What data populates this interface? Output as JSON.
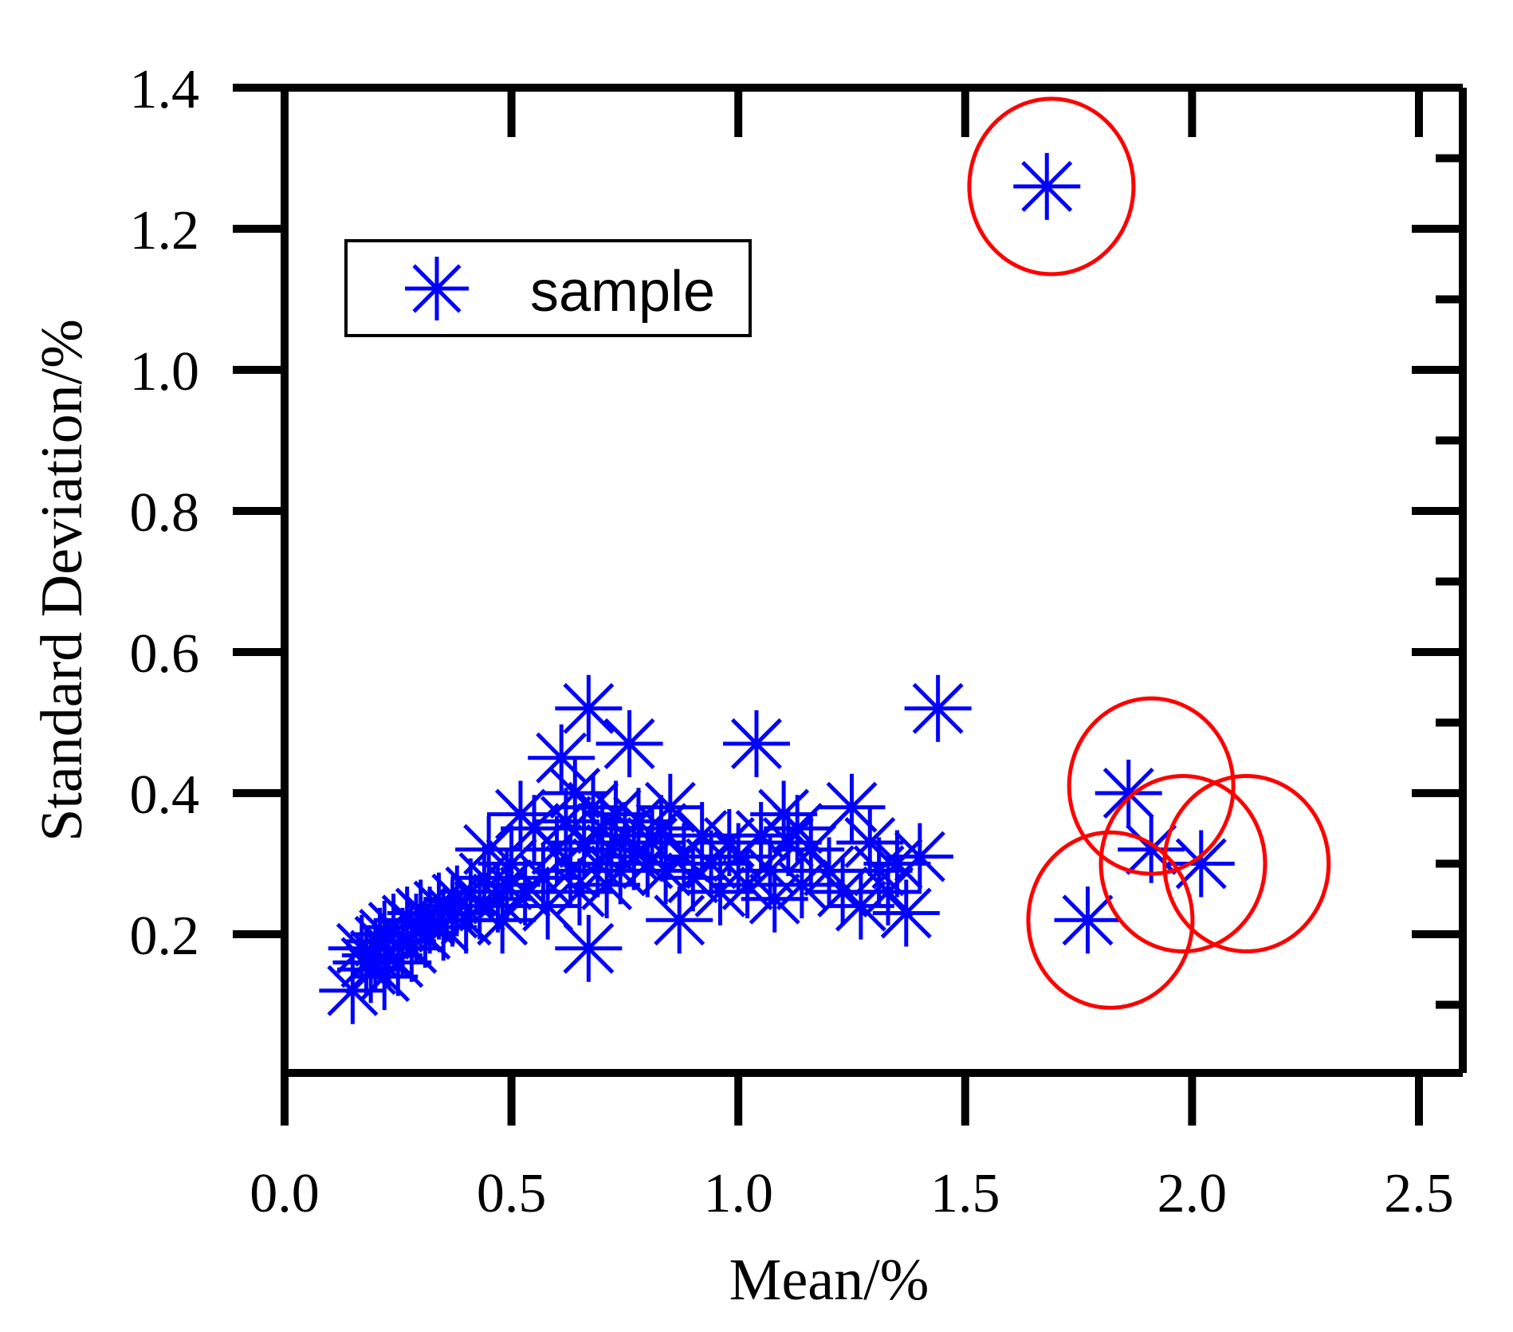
{
  "chart_data": {
    "type": "scatter",
    "title": "",
    "xlabel": "Mean/%",
    "ylabel": "Standard Deviation/%",
    "xlim": [
      0,
      2.6
    ],
    "ylim": [
      0,
      1.4
    ],
    "x_ticks": [
      "0.0",
      "0.5",
      "1.0",
      "1.5",
      "2.0",
      "2.5"
    ],
    "x_tick_values": [
      0,
      0.5,
      1.0,
      1.5,
      2.0,
      2.5
    ],
    "y_ticks": [
      "0.2",
      "0.4",
      "0.6",
      "0.8",
      "1.0",
      "1.2",
      "1.4"
    ],
    "y_tick_values": [
      0.2,
      0.4,
      0.6,
      0.8,
      1.0,
      1.2,
      1.4
    ],
    "grid": false,
    "legend": {
      "placement": "top-left",
      "entries": [
        "sample"
      ]
    },
    "marker": "asterisk",
    "series": [
      {
        "name": "sample",
        "color": "#0000ff",
        "points": [
          [
            0.15,
            0.12
          ],
          [
            0.17,
            0.18
          ],
          [
            0.18,
            0.16
          ],
          [
            0.19,
            0.15
          ],
          [
            0.2,
            0.17
          ],
          [
            0.21,
            0.19
          ],
          [
            0.22,
            0.14
          ],
          [
            0.22,
            0.2
          ],
          [
            0.23,
            0.17
          ],
          [
            0.24,
            0.21
          ],
          [
            0.25,
            0.16
          ],
          [
            0.26,
            0.19
          ],
          [
            0.27,
            0.22
          ],
          [
            0.28,
            0.18
          ],
          [
            0.29,
            0.21
          ],
          [
            0.3,
            0.23
          ],
          [
            0.31,
            0.2
          ],
          [
            0.32,
            0.22
          ],
          [
            0.34,
            0.24
          ],
          [
            0.35,
            0.21
          ],
          [
            0.37,
            0.23
          ],
          [
            0.38,
            0.25
          ],
          [
            0.4,
            0.22
          ],
          [
            0.41,
            0.26
          ],
          [
            0.43,
            0.24
          ],
          [
            0.44,
            0.28
          ],
          [
            0.45,
            0.32
          ],
          [
            0.47,
            0.25
          ],
          [
            0.48,
            0.22
          ],
          [
            0.49,
            0.27
          ],
          [
            0.5,
            0.3
          ],
          [
            0.52,
            0.37
          ],
          [
            0.53,
            0.26
          ],
          [
            0.55,
            0.35
          ],
          [
            0.57,
            0.28
          ],
          [
            0.58,
            0.24
          ],
          [
            0.6,
            0.32
          ],
          [
            0.61,
            0.45
          ],
          [
            0.62,
            0.36
          ],
          [
            0.63,
            0.29
          ],
          [
            0.64,
            0.4
          ],
          [
            0.65,
            0.26
          ],
          [
            0.66,
            0.33
          ],
          [
            0.67,
            0.52
          ],
          [
            0.67,
            0.18
          ],
          [
            0.68,
            0.38
          ],
          [
            0.69,
            0.3
          ],
          [
            0.7,
            0.35
          ],
          [
            0.71,
            0.27
          ],
          [
            0.72,
            0.32
          ],
          [
            0.73,
            0.37
          ],
          [
            0.74,
            0.29
          ],
          [
            0.75,
            0.34
          ],
          [
            0.76,
            0.47
          ],
          [
            0.77,
            0.31
          ],
          [
            0.78,
            0.36
          ],
          [
            0.8,
            0.3
          ],
          [
            0.81,
            0.33
          ],
          [
            0.83,
            0.35
          ],
          [
            0.84,
            0.29
          ],
          [
            0.85,
            0.38
          ],
          [
            0.87,
            0.22
          ],
          [
            0.88,
            0.31
          ],
          [
            0.9,
            0.28
          ],
          [
            0.92,
            0.34
          ],
          [
            0.94,
            0.3
          ],
          [
            0.96,
            0.26
          ],
          [
            0.98,
            0.33
          ],
          [
            1.0,
            0.31
          ],
          [
            1.02,
            0.27
          ],
          [
            1.04,
            0.47
          ],
          [
            1.05,
            0.34
          ],
          [
            1.07,
            0.29
          ],
          [
            1.08,
            0.25
          ],
          [
            1.1,
            0.37
          ],
          [
            1.11,
            0.33
          ],
          [
            1.13,
            0.35
          ],
          [
            1.14,
            0.27
          ],
          [
            1.16,
            0.32
          ],
          [
            1.2,
            0.29
          ],
          [
            1.23,
            0.26
          ],
          [
            1.25,
            0.38
          ],
          [
            1.27,
            0.24
          ],
          [
            1.29,
            0.33
          ],
          [
            1.31,
            0.29
          ],
          [
            1.33,
            0.26
          ],
          [
            1.35,
            0.3
          ],
          [
            1.37,
            0.23
          ],
          [
            1.4,
            0.31
          ],
          [
            1.44,
            0.52
          ],
          [
            1.68,
            1.26
          ],
          [
            1.86,
            0.4
          ],
          [
            1.91,
            0.32
          ],
          [
            2.02,
            0.3
          ],
          [
            1.77,
            0.22
          ]
        ]
      }
    ],
    "annotations": [
      {
        "shape": "circle",
        "color": "#ff0000",
        "center": [
          1.69,
          1.26
        ]
      },
      {
        "shape": "circle",
        "color": "#ff0000",
        "center": [
          1.91,
          0.41
        ]
      },
      {
        "shape": "circle",
        "color": "#ff0000",
        "center": [
          1.98,
          0.3
        ]
      },
      {
        "shape": "circle",
        "color": "#ff0000",
        "center": [
          2.12,
          0.3
        ]
      },
      {
        "shape": "circle",
        "color": "#ff0000",
        "center": [
          1.82,
          0.22
        ]
      }
    ]
  }
}
